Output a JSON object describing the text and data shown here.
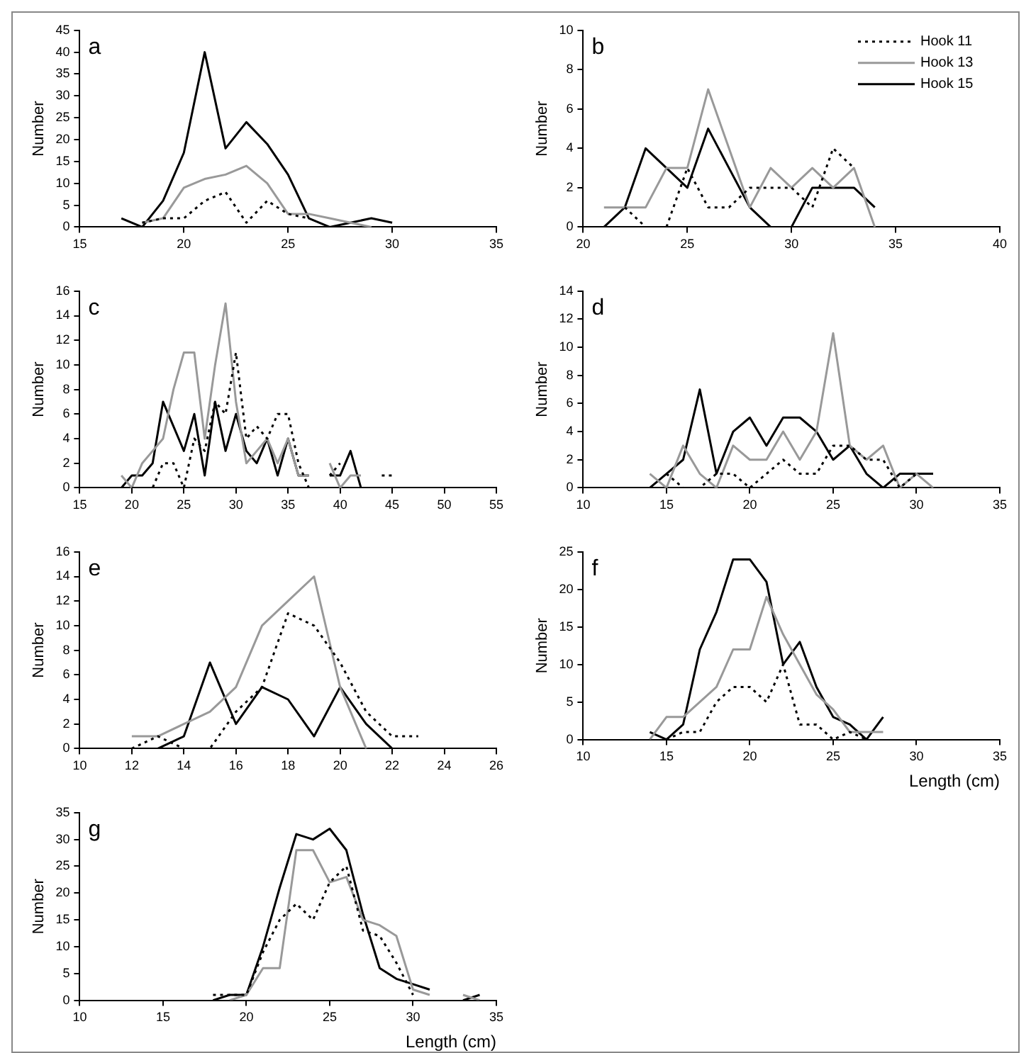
{
  "chart_data": [
    {
      "type": "line",
      "title": "a",
      "ylabel": "Number",
      "xlim": [
        15,
        35
      ],
      "xticks": [
        15,
        20,
        25,
        30,
        35
      ],
      "ylim": [
        0,
        45
      ],
      "yticks": [
        0,
        5,
        10,
        15,
        20,
        25,
        30,
        35,
        40,
        45
      ],
      "series": [
        {
          "color": "#000000",
          "line_style": "dotted",
          "x": [
            18,
            19,
            20,
            21,
            22,
            23,
            24,
            25,
            26
          ],
          "values": [
            1,
            2,
            2,
            6,
            8,
            1,
            6,
            3,
            2
          ]
        },
        {
          "color": "#999999",
          "line_style": "solid",
          "x": [
            18,
            19,
            20,
            21,
            22,
            23,
            24,
            25,
            26,
            27,
            28,
            29
          ],
          "values": [
            1,
            2,
            9,
            11,
            12,
            14,
            10,
            3,
            3,
            2,
            1,
            0
          ]
        },
        {
          "color": "#000000",
          "line_style": "solid",
          "x": [
            17,
            18,
            19,
            20,
            21,
            22,
            23,
            24,
            25,
            26,
            27,
            28,
            29,
            30
          ],
          "values": [
            2,
            0,
            6,
            17,
            40,
            18,
            24,
            19,
            12,
            2,
            0,
            1,
            2,
            1
          ]
        }
      ]
    },
    {
      "type": "line",
      "title": "b",
      "ylabel": "Number",
      "legend": "top right",
      "xlim": [
        20,
        40
      ],
      "xticks": [
        20,
        25,
        30,
        35,
        40
      ],
      "ylim": [
        0,
        10
      ],
      "yticks": [
        0,
        2,
        4,
        6,
        8,
        10
      ],
      "series": [
        {
          "name": "Hook 11",
          "color": "#000000",
          "line_style": "dotted",
          "x": [
            22,
            23,
            24,
            25,
            26,
            27,
            28,
            29,
            30,
            31,
            32,
            33
          ],
          "values": [
            1,
            0,
            0,
            3,
            1,
            1,
            2,
            2,
            2,
            1,
            4,
            3
          ]
        },
        {
          "name": "Hook 13",
          "color": "#999999",
          "line_style": "solid",
          "x": [
            21,
            22,
            23,
            24,
            25,
            26,
            27,
            28,
            29,
            30,
            31,
            32,
            33,
            34
          ],
          "values": [
            1,
            1,
            1,
            3,
            3,
            7,
            4,
            1,
            3,
            2,
            3,
            2,
            3,
            0
          ]
        },
        {
          "name": "Hook 15",
          "color": "#000000",
          "line_style": "solid",
          "x": [
            21,
            22,
            23,
            24,
            25,
            26,
            27,
            28,
            29,
            30,
            31,
            32,
            33,
            34
          ],
          "values": [
            0,
            1,
            4,
            3,
            2,
            5,
            3,
            1,
            0,
            0,
            2,
            2,
            2,
            1
          ]
        }
      ]
    },
    {
      "type": "line",
      "title": "c",
      "ylabel": "Number",
      "xlim": [
        15,
        55
      ],
      "xticks": [
        15,
        20,
        25,
        30,
        35,
        40,
        45,
        50,
        55
      ],
      "ylim": [
        0,
        16
      ],
      "yticks": [
        0,
        2,
        4,
        6,
        8,
        10,
        12,
        14,
        16
      ],
      "series": [
        {
          "color": "#000000",
          "line_style": "dotted",
          "x": [
            20,
            21,
            22,
            23,
            24,
            25,
            26,
            27,
            28,
            29,
            30,
            31,
            32,
            33,
            34,
            35,
            36,
            37,
            38,
            39,
            40,
            41,
            42,
            43,
            44,
            45
          ],
          "values": [
            0,
            0,
            0,
            2,
            2,
            0,
            4,
            3,
            7,
            6,
            11,
            4,
            5,
            4,
            6,
            6,
            2,
            0,
            null,
            1,
            2,
            null,
            null,
            null,
            1,
            1
          ]
        },
        {
          "color": "#999999",
          "line_style": "solid",
          "x": [
            19,
            20,
            21,
            22,
            23,
            24,
            25,
            26,
            27,
            28,
            29,
            30,
            31,
            32,
            33,
            34,
            35,
            36,
            37,
            38,
            39,
            40,
            41,
            42
          ],
          "values": [
            1,
            0,
            2,
            3,
            4,
            8,
            11,
            11,
            4,
            10,
            15,
            7,
            2,
            3,
            4,
            2,
            4,
            1,
            1,
            null,
            2,
            0,
            1,
            1
          ]
        },
        {
          "color": "#000000",
          "line_style": "solid",
          "x": [
            19,
            20,
            21,
            22,
            23,
            24,
            25,
            26,
            27,
            28,
            29,
            30,
            31,
            32,
            33,
            34,
            35,
            36,
            37,
            38,
            39,
            40,
            41,
            42,
            43,
            44,
            45
          ],
          "values": [
            0,
            1,
            1,
            2,
            7,
            5,
            3,
            6,
            1,
            7,
            3,
            6,
            3,
            2,
            4,
            1,
            4,
            1,
            1,
            null,
            1,
            1,
            3,
            0,
            null,
            0,
            0
          ]
        }
      ]
    },
    {
      "type": "line",
      "title": "d",
      "ylabel": "Number",
      "xlim": [
        10,
        35
      ],
      "xticks": [
        10,
        15,
        20,
        25,
        30,
        35
      ],
      "ylim": [
        0,
        14
      ],
      "yticks": [
        0,
        2,
        4,
        6,
        8,
        10,
        12,
        14
      ],
      "series": [
        {
          "color": "#000000",
          "line_style": "dotted",
          "x": [
            15,
            16,
            17,
            18,
            19,
            20,
            21,
            22,
            23,
            24,
            25,
            26,
            27,
            28,
            29,
            30,
            31
          ],
          "values": [
            1,
            0,
            0,
            1,
            1,
            0,
            1,
            2,
            1,
            1,
            3,
            3,
            2,
            2,
            0,
            1,
            1
          ]
        },
        {
          "color": "#999999",
          "line_style": "solid",
          "x": [
            14,
            15,
            16,
            17,
            18,
            19,
            20,
            21,
            22,
            23,
            24,
            25,
            26,
            27,
            28,
            29,
            30,
            31
          ],
          "values": [
            1,
            0,
            3,
            1,
            0,
            3,
            2,
            2,
            4,
            2,
            4,
            11,
            3,
            2,
            3,
            0,
            1,
            0
          ]
        },
        {
          "color": "#000000",
          "line_style": "solid",
          "x": [
            14,
            15,
            16,
            17,
            18,
            19,
            20,
            21,
            22,
            23,
            24,
            25,
            26,
            27,
            28,
            29,
            30,
            31
          ],
          "values": [
            0,
            1,
            2,
            7,
            1,
            4,
            5,
            3,
            5,
            5,
            4,
            2,
            3,
            1,
            0,
            1,
            1,
            1
          ]
        }
      ]
    },
    {
      "type": "line",
      "title": "e",
      "ylabel": "Number",
      "xlim": [
        10,
        26
      ],
      "xticks": [
        10,
        12,
        14,
        16,
        18,
        20,
        22,
        24,
        26
      ],
      "ylim": [
        0,
        16
      ],
      "yticks": [
        0,
        2,
        4,
        6,
        8,
        10,
        12,
        14,
        16
      ],
      "series": [
        {
          "color": "#000000",
          "line_style": "dotted",
          "x": [
            12,
            13,
            14,
            15,
            16,
            17,
            18,
            19,
            20,
            21,
            22,
            23
          ],
          "values": [
            0,
            1,
            0,
            0,
            3,
            5,
            11,
            10,
            7,
            3,
            1,
            1
          ]
        },
        {
          "color": "#999999",
          "line_style": "solid",
          "x": [
            12,
            13,
            14,
            15,
            16,
            17,
            18,
            19,
            20,
            21
          ],
          "values": [
            1,
            1,
            2,
            3,
            5,
            10,
            12,
            14,
            5,
            0
          ]
        },
        {
          "color": "#000000",
          "line_style": "solid",
          "x": [
            13,
            14,
            15,
            16,
            17,
            18,
            19,
            20,
            21,
            22,
            23
          ],
          "values": [
            0,
            1,
            7,
            2,
            5,
            4,
            1,
            5,
            2,
            0,
            0
          ]
        }
      ]
    },
    {
      "type": "line",
      "title": "f",
      "ylabel": "Number",
      "xlabel": "Length (cm)",
      "xlim": [
        10,
        35
      ],
      "xticks": [
        10,
        15,
        20,
        25,
        30,
        35
      ],
      "ylim": [
        0,
        25
      ],
      "yticks": [
        0,
        5,
        10,
        15,
        20,
        25
      ],
      "series": [
        {
          "color": "#000000",
          "line_style": "dotted",
          "x": [
            15,
            16,
            17,
            18,
            19,
            20,
            21,
            22,
            23,
            24,
            25,
            26,
            27
          ],
          "values": [
            0,
            1,
            1,
            5,
            7,
            7,
            5,
            10,
            2,
            2,
            0,
            1,
            0
          ]
        },
        {
          "color": "#999999",
          "line_style": "solid",
          "x": [
            14,
            15,
            16,
            17,
            18,
            19,
            20,
            21,
            22,
            23,
            24,
            25,
            26,
            27,
            28
          ],
          "values": [
            0,
            3,
            3,
            5,
            7,
            12,
            12,
            19,
            14,
            10,
            6,
            4,
            1,
            1,
            1
          ]
        },
        {
          "color": "#000000",
          "line_style": "solid",
          "x": [
            14,
            15,
            16,
            17,
            18,
            19,
            20,
            21,
            22,
            23,
            24,
            25,
            26,
            27,
            28
          ],
          "values": [
            1,
            0,
            2,
            12,
            17,
            24,
            24,
            21,
            10,
            13,
            7,
            3,
            2,
            0,
            3
          ]
        }
      ]
    },
    {
      "type": "line",
      "title": "g",
      "ylabel": "Number",
      "xlabel": "Length (cm)",
      "xlim": [
        10,
        35
      ],
      "xticks": [
        10,
        15,
        20,
        25,
        30,
        35
      ],
      "ylim": [
        0,
        35
      ],
      "yticks": [
        0,
        5,
        10,
        15,
        20,
        25,
        30,
        35
      ],
      "series": [
        {
          "color": "#000000",
          "line_style": "dotted",
          "x": [
            18,
            19,
            20,
            21,
            22,
            23,
            24,
            25,
            26,
            27,
            28,
            29,
            30
          ],
          "values": [
            1,
            1,
            1,
            9,
            15,
            18,
            15,
            22,
            25,
            13,
            12,
            7,
            1
          ]
        },
        {
          "color": "#999999",
          "line_style": "solid",
          "x": [
            19,
            20,
            21,
            22,
            23,
            24,
            25,
            26,
            27,
            28,
            29,
            30,
            31,
            32,
            33,
            34
          ],
          "values": [
            0,
            1,
            6,
            6,
            28,
            28,
            22,
            23,
            15,
            14,
            12,
            2,
            1,
            null,
            1,
            0
          ]
        },
        {
          "color": "#000000",
          "line_style": "solid",
          "x": [
            18,
            19,
            20,
            21,
            22,
            23,
            24,
            25,
            26,
            27,
            28,
            29,
            30,
            31,
            32,
            33,
            34
          ],
          "values": [
            0,
            1,
            1,
            10,
            21,
            31,
            30,
            32,
            28,
            16,
            6,
            4,
            3,
            2,
            null,
            0,
            1
          ]
        }
      ]
    }
  ]
}
